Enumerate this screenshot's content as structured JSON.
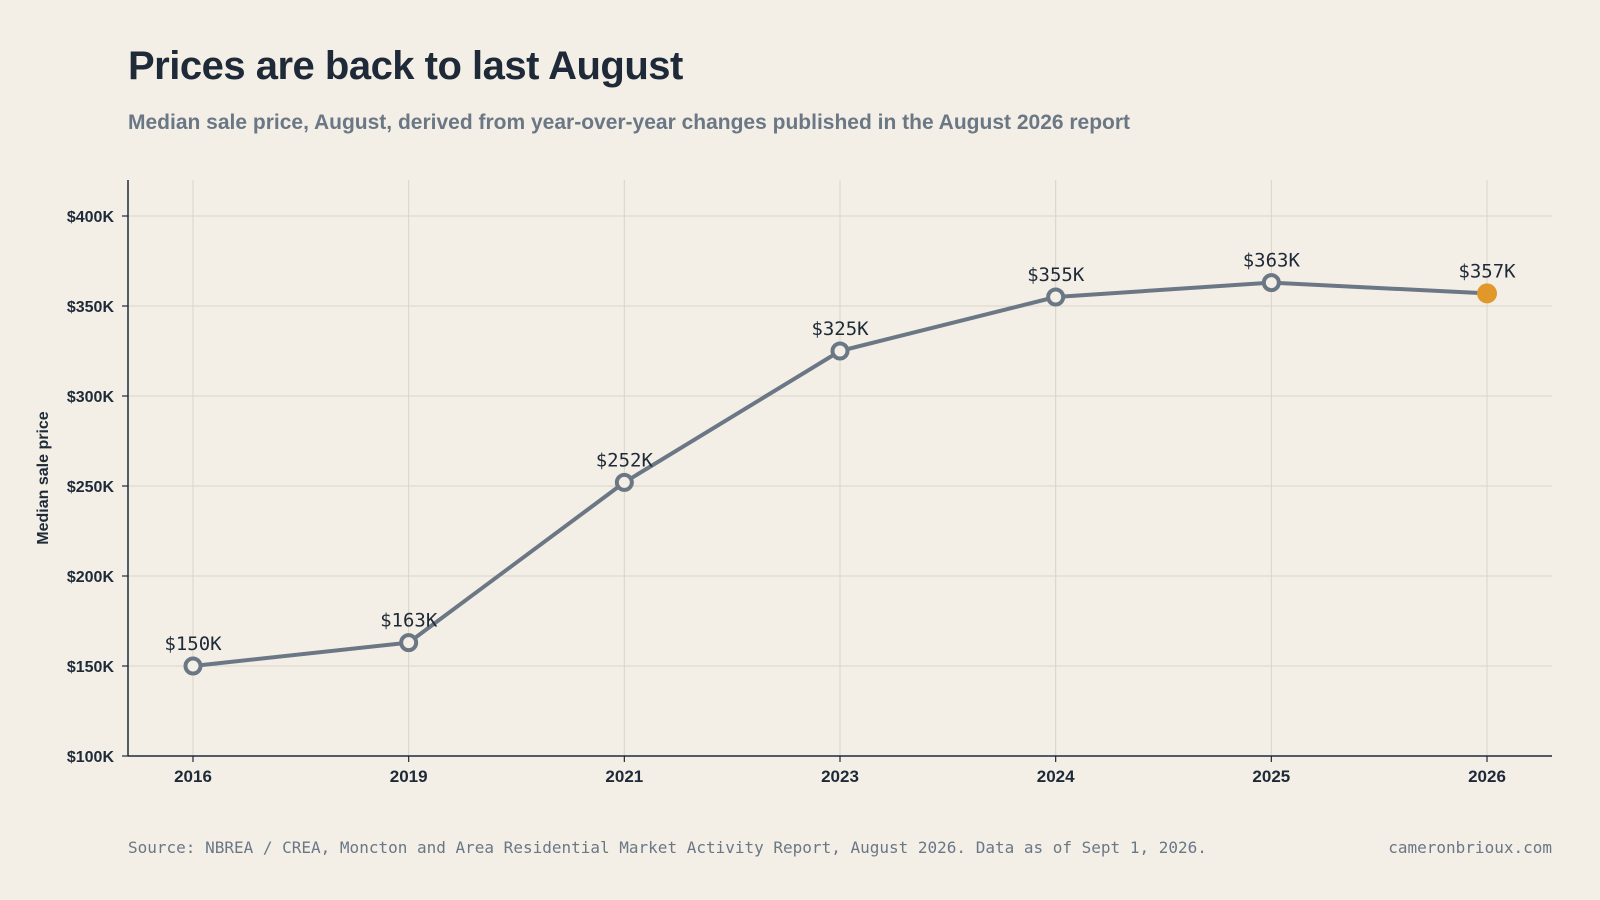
{
  "chart_data": {
    "type": "line",
    "title": "Prices are back to last August",
    "subtitle": "Median sale price, August, derived from year-over-year changes published in the August 2026 report",
    "ylabel": "Median sale price",
    "xlabel": "",
    "categories": [
      "2016",
      "2019",
      "2021",
      "2023",
      "2024",
      "2025",
      "2026"
    ],
    "series": [
      {
        "values": [
          150,
          163,
          252,
          325,
          355,
          363,
          357
        ],
        "labels": [
          "$150K",
          "$163K",
          "$252K",
          "$325K",
          "$355K",
          "$363K",
          "$357K"
        ]
      }
    ],
    "ylim": [
      100,
      420
    ],
    "yticks": [
      100,
      150,
      200,
      250,
      300,
      350,
      400
    ],
    "ytick_labels": [
      "$100K",
      "$150K",
      "$200K",
      "$250K",
      "$300K",
      "$350K",
      "$400K"
    ],
    "highlight_index": 6,
    "grid": true,
    "colors": {
      "line": "#6b7785",
      "highlight": "#e0982a",
      "marker_fill": "#f3efe6",
      "grid": "#d9d4c8",
      "axis": "#1e2a38"
    }
  },
  "footer": {
    "source": "Source: NBREA / CREA, Moncton and Area Residential Market Activity Report, August 2026. Data as of Sept 1, 2026.",
    "credit": "cameronbrioux.com"
  }
}
